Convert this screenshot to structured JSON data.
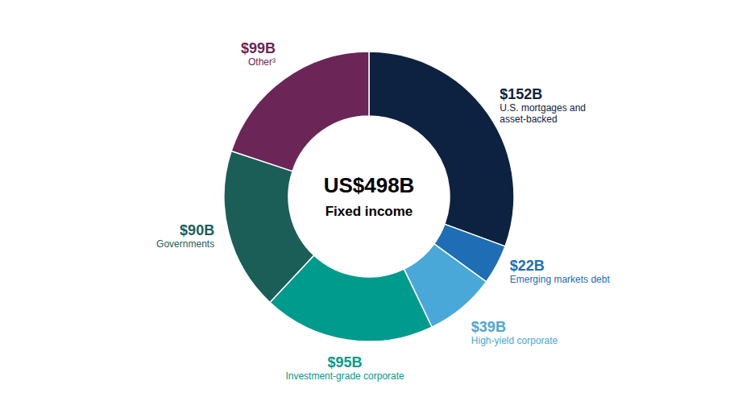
{
  "chart_data": {
    "type": "pie",
    "annotations": [
      "US$498B",
      "Fixed income"
    ],
    "categories": [
      "U.S. mortgages and\nasset-backed",
      "Emerging markets debt",
      "High-yield corporate",
      "Investment-grade corporate",
      "Governments",
      "Other³"
    ],
    "values": [
      152,
      22,
      39,
      95,
      90,
      99
    ],
    "value_labels": [
      "$152B",
      "$22B",
      "$39B",
      "$95B",
      "$90B",
      "$99B"
    ],
    "data_labels": true,
    "colors": [
      "#0d2240",
      "#1e6db5",
      "#49a8d8",
      "#009b8d",
      "#1b5e58",
      "#6b2557"
    ]
  }
}
